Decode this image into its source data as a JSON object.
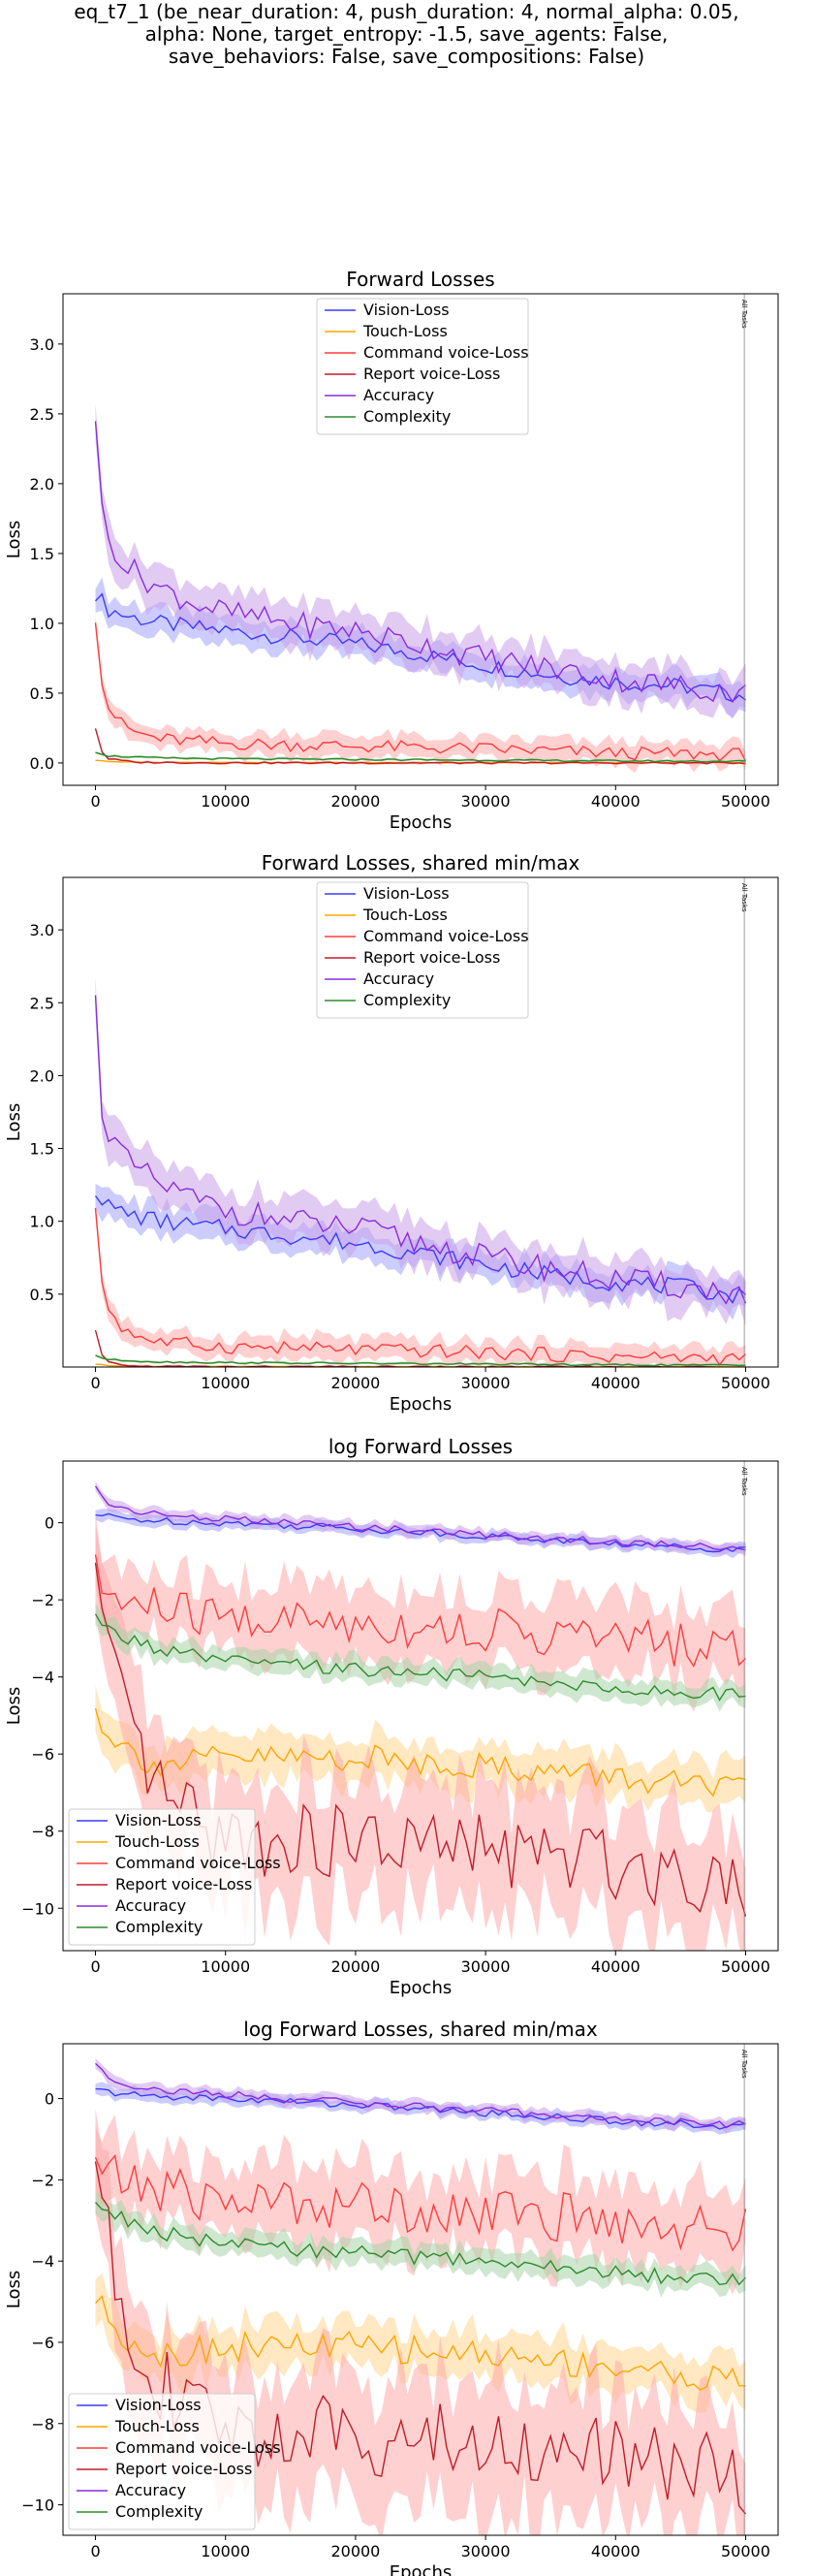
{
  "figure": {
    "title_lines": [
      "eq_t7_1 (be_near_duration: 4, push_duration: 4, normal_alpha: 0.05,",
      "alpha: None, target_entropy: -1.5, save_agents: False,",
      "save_behaviors: False, save_compositions: False)"
    ]
  },
  "colors": {
    "vision": "#3b3bff",
    "touch": "#ffa500",
    "command": "#ff3b3b",
    "report": "#c01c28",
    "accuracy": "#8a2be2",
    "complexity": "#2e8b2e",
    "vision_band": "#a3a3ff",
    "touch_band": "#ffd590",
    "command_band": "#ffaaaa",
    "accuracy_band": "#c9a0e8",
    "complexity_band": "#a8d4a8"
  },
  "chart_data": [
    {
      "type": "line",
      "title": "Forward Losses",
      "xlabel": "Epochs",
      "ylabel": "Loss",
      "xlim": [
        -2500,
        52500
      ],
      "ylim": [
        -0.16,
        3.36
      ],
      "xticks": [
        0,
        10000,
        20000,
        30000,
        40000,
        50000
      ],
      "yticks": [
        0.0,
        0.5,
        1.0,
        1.5,
        2.0,
        2.5,
        3.0
      ],
      "ytick_labels": [
        "0.0",
        "0.5",
        "1.0",
        "1.5",
        "2.0",
        "2.5",
        "3.0"
      ],
      "legend": "upper center",
      "vline": {
        "x": 49900,
        "label": "All Tasks"
      },
      "series": [
        {
          "name": "Vision-Loss",
          "key": "vision",
          "x": [
            0,
            1000,
            2500,
            5000,
            7500,
            10000,
            15000,
            20000,
            25000,
            30000,
            35000,
            40000,
            45000,
            50000
          ],
          "values": [
            1.22,
            1.1,
            1.05,
            1.0,
            0.97,
            0.95,
            0.9,
            0.85,
            0.78,
            0.7,
            0.63,
            0.58,
            0.55,
            0.48
          ],
          "spread": 0.1
        },
        {
          "name": "Touch-Loss",
          "key": "touch",
          "x": [
            0,
            1000,
            3000,
            10000,
            30000,
            50000
          ],
          "values": [
            0.02,
            0.01,
            0.005,
            0.003,
            0.002,
            0.002
          ],
          "spread": 0.003
        },
        {
          "name": "Command voice-Loss",
          "key": "command",
          "x": [
            0,
            500,
            1000,
            2000,
            3000,
            5000,
            10000,
            20000,
            30000,
            40000,
            50000
          ],
          "values": [
            1.05,
            0.6,
            0.4,
            0.28,
            0.22,
            0.17,
            0.14,
            0.12,
            0.1,
            0.07,
            0.06
          ],
          "spread": 0.08
        },
        {
          "name": "Report voice-Loss",
          "key": "report",
          "x": [
            0,
            500,
            1000,
            3000,
            10000,
            30000,
            50000
          ],
          "values": [
            0.25,
            0.08,
            0.03,
            0.005,
            0.001,
            0.0005,
            0.0005
          ],
          "spread": 0.01
        },
        {
          "name": "Accuracy",
          "key": "accuracy",
          "x": [
            0,
            500,
            1000,
            2500,
            5000,
            7500,
            10000,
            15000,
            20000,
            25000,
            30000,
            35000,
            40000,
            45000,
            50000
          ],
          "values": [
            2.5,
            1.8,
            1.6,
            1.4,
            1.25,
            1.15,
            1.08,
            1.0,
            0.95,
            0.85,
            0.75,
            0.68,
            0.6,
            0.55,
            0.5
          ],
          "spread": 0.15
        },
        {
          "name": "Complexity",
          "key": "complexity",
          "x": [
            0,
            1000,
            5000,
            10000,
            20000,
            30000,
            40000,
            50000
          ],
          "values": [
            0.08,
            0.05,
            0.035,
            0.03,
            0.025,
            0.02,
            0.015,
            0.012
          ],
          "spread": 0.01
        }
      ]
    },
    {
      "type": "line",
      "title": "Forward Losses, shared min/max",
      "xlabel": "Epochs",
      "ylabel": "Loss",
      "xlim": [
        -2500,
        52500
      ],
      "ylim": [
        0.0,
        3.36
      ],
      "xticks": [
        0,
        10000,
        20000,
        30000,
        40000,
        50000
      ],
      "yticks": [
        0.5,
        1.0,
        1.5,
        2.0,
        2.5,
        3.0
      ],
      "ytick_labels": [
        "0.5",
        "1.0",
        "1.5",
        "2.0",
        "2.5",
        "3.0"
      ],
      "legend": "upper center",
      "vline": {
        "x": 49900,
        "label": "All Tasks"
      },
      "series": [
        {
          "name": "Vision-Loss",
          "key": "vision",
          "x": [
            0,
            1000,
            2500,
            5000,
            7500,
            10000,
            15000,
            20000,
            25000,
            30000,
            35000,
            40000,
            45000,
            50000
          ],
          "values": [
            1.22,
            1.1,
            1.05,
            1.0,
            0.97,
            0.95,
            0.9,
            0.85,
            0.78,
            0.7,
            0.63,
            0.58,
            0.55,
            0.48
          ],
          "spread": 0.1
        },
        {
          "name": "Touch-Loss",
          "key": "touch",
          "x": [
            0,
            1000,
            3000,
            10000,
            30000,
            50000
          ],
          "values": [
            0.02,
            0.01,
            0.005,
            0.003,
            0.002,
            0.002
          ],
          "spread": 0.003
        },
        {
          "name": "Command voice-Loss",
          "key": "command",
          "x": [
            0,
            500,
            1000,
            2000,
            3000,
            5000,
            10000,
            20000,
            30000,
            40000,
            50000
          ],
          "values": [
            1.05,
            0.6,
            0.4,
            0.28,
            0.22,
            0.17,
            0.14,
            0.12,
            0.1,
            0.07,
            0.06
          ],
          "spread": 0.08
        },
        {
          "name": "Report voice-Loss",
          "key": "report",
          "x": [
            0,
            500,
            1000,
            3000,
            10000,
            30000,
            50000
          ],
          "values": [
            0.25,
            0.08,
            0.03,
            0.005,
            0.001,
            0.0005,
            0.0005
          ],
          "spread": 0.01
        },
        {
          "name": "Accuracy",
          "key": "accuracy",
          "x": [
            0,
            500,
            1000,
            2500,
            5000,
            7500,
            10000,
            15000,
            20000,
            25000,
            30000,
            35000,
            40000,
            45000,
            50000
          ],
          "values": [
            2.5,
            1.8,
            1.6,
            1.4,
            1.25,
            1.15,
            1.08,
            1.0,
            0.95,
            0.85,
            0.75,
            0.68,
            0.6,
            0.55,
            0.5
          ],
          "spread": 0.15
        },
        {
          "name": "Complexity",
          "key": "complexity",
          "x": [
            0,
            1000,
            5000,
            10000,
            20000,
            30000,
            40000,
            50000
          ],
          "values": [
            0.08,
            0.05,
            0.035,
            0.03,
            0.025,
            0.02,
            0.015,
            0.012
          ],
          "spread": 0.01
        }
      ]
    },
    {
      "type": "line",
      "title": "log Forward Losses",
      "xlabel": "Epochs",
      "ylabel": "Loss",
      "xlim": [
        -2500,
        52500
      ],
      "ylim": [
        -11.1,
        1.6
      ],
      "xticks": [
        0,
        10000,
        20000,
        30000,
        40000,
        50000
      ],
      "yticks": [
        0,
        -2,
        -4,
        -6,
        -8,
        -10
      ],
      "ytick_labels": [
        "0",
        "−2",
        "−4",
        "−6",
        "−8",
        "−10"
      ],
      "legend": "lower left",
      "vline": {
        "x": 49900,
        "label": "All Tasks"
      },
      "series": [
        {
          "name": "Vision-Loss",
          "key": "vision",
          "x": [
            0,
            2500,
            5000,
            10000,
            20000,
            30000,
            40000,
            50000
          ],
          "values": [
            0.2,
            0.1,
            0.05,
            0.0,
            -0.15,
            -0.35,
            -0.55,
            -0.7
          ],
          "spread": 0.15
        },
        {
          "name": "Touch-Loss",
          "key": "touch",
          "x": [
            0,
            1000,
            2500,
            5000,
            7500,
            10000,
            20000,
            30000,
            40000,
            50000
          ],
          "values": [
            -4.9,
            -5.4,
            -5.9,
            -6.3,
            -6.2,
            -6.1,
            -6.1,
            -6.3,
            -6.6,
            -7.0
          ],
          "spread": 0.6
        },
        {
          "name": "Command voice-Loss",
          "key": "command",
          "x": [
            0,
            1000,
            2500,
            5000,
            7500,
            10000,
            20000,
            30000,
            40000,
            50000
          ],
          "values": [
            -1.4,
            -1.9,
            -2.1,
            -2.2,
            -2.4,
            -2.5,
            -2.6,
            -2.8,
            -3.0,
            -3.3
          ],
          "spread": 1.0
        },
        {
          "name": "Report voice-Loss",
          "key": "report",
          "x": [
            0,
            1000,
            2500,
            5000,
            7500,
            10000,
            20000,
            30000,
            40000,
            50000
          ],
          "values": [
            -1.4,
            -3.5,
            -5.5,
            -7.0,
            -7.8,
            -8.2,
            -8.3,
            -8.5,
            -8.8,
            -9.3
          ],
          "spread": 1.6
        },
        {
          "name": "Accuracy",
          "key": "accuracy",
          "x": [
            0,
            1000,
            2500,
            5000,
            10000,
            20000,
            30000,
            40000,
            50000
          ],
          "values": [
            0.9,
            0.5,
            0.35,
            0.2,
            0.1,
            -0.1,
            -0.3,
            -0.5,
            -0.65
          ],
          "spread": 0.15
        },
        {
          "name": "Complexity",
          "key": "complexity",
          "x": [
            0,
            1000,
            2500,
            5000,
            10000,
            20000,
            30000,
            40000,
            50000
          ],
          "values": [
            -2.5,
            -2.8,
            -3.0,
            -3.3,
            -3.6,
            -3.8,
            -4.0,
            -4.3,
            -4.5
          ],
          "spread": 0.3
        }
      ]
    },
    {
      "type": "line",
      "title": "log Forward Losses, shared min/max",
      "xlabel": "Epochs",
      "ylabel": "Loss",
      "xlim": [
        -2500,
        52500
      ],
      "ylim": [
        -10.75,
        1.35
      ],
      "xticks": [
        0,
        10000,
        20000,
        30000,
        40000,
        50000
      ],
      "yticks": [
        0,
        -2,
        -4,
        -6,
        -8,
        -10
      ],
      "ytick_labels": [
        "0",
        "−2",
        "−4",
        "−6",
        "−8",
        "−10"
      ],
      "legend": "lower left",
      "vline": {
        "x": 49900,
        "label": "All Tasks"
      },
      "series": [
        {
          "name": "Vision-Loss",
          "key": "vision",
          "x": [
            0,
            2500,
            5000,
            10000,
            20000,
            30000,
            40000,
            50000
          ],
          "values": [
            0.2,
            0.1,
            0.05,
            0.0,
            -0.15,
            -0.35,
            -0.55,
            -0.7
          ],
          "spread": 0.15
        },
        {
          "name": "Touch-Loss",
          "key": "touch",
          "x": [
            0,
            1000,
            2500,
            5000,
            7500,
            10000,
            20000,
            30000,
            40000,
            50000
          ],
          "values": [
            -4.9,
            -5.4,
            -5.9,
            -6.3,
            -6.2,
            -6.1,
            -6.1,
            -6.3,
            -6.6,
            -7.0
          ],
          "spread": 0.6
        },
        {
          "name": "Command voice-Loss",
          "key": "command",
          "x": [
            0,
            1000,
            2500,
            5000,
            7500,
            10000,
            20000,
            30000,
            40000,
            50000
          ],
          "values": [
            -1.4,
            -1.9,
            -2.1,
            -2.2,
            -2.4,
            -2.5,
            -2.6,
            -2.8,
            -3.0,
            -3.3
          ],
          "spread": 1.0
        },
        {
          "name": "Report voice-Loss",
          "key": "report",
          "x": [
            0,
            1000,
            2500,
            5000,
            7500,
            10000,
            20000,
            30000,
            40000,
            50000
          ],
          "values": [
            -1.4,
            -3.5,
            -5.5,
            -7.0,
            -7.8,
            -8.2,
            -8.3,
            -8.5,
            -8.8,
            -9.3
          ],
          "spread": 1.6
        },
        {
          "name": "Accuracy",
          "key": "accuracy",
          "x": [
            0,
            1000,
            2500,
            5000,
            10000,
            20000,
            30000,
            40000,
            50000
          ],
          "values": [
            0.9,
            0.5,
            0.35,
            0.2,
            0.1,
            -0.1,
            -0.3,
            -0.5,
            -0.65
          ],
          "spread": 0.15
        },
        {
          "name": "Complexity",
          "key": "complexity",
          "x": [
            0,
            1000,
            2500,
            5000,
            10000,
            20000,
            30000,
            40000,
            50000
          ],
          "values": [
            -2.5,
            -2.8,
            -3.0,
            -3.3,
            -3.6,
            -3.8,
            -4.0,
            -4.3,
            -4.5
          ],
          "spread": 0.3
        }
      ]
    }
  ]
}
